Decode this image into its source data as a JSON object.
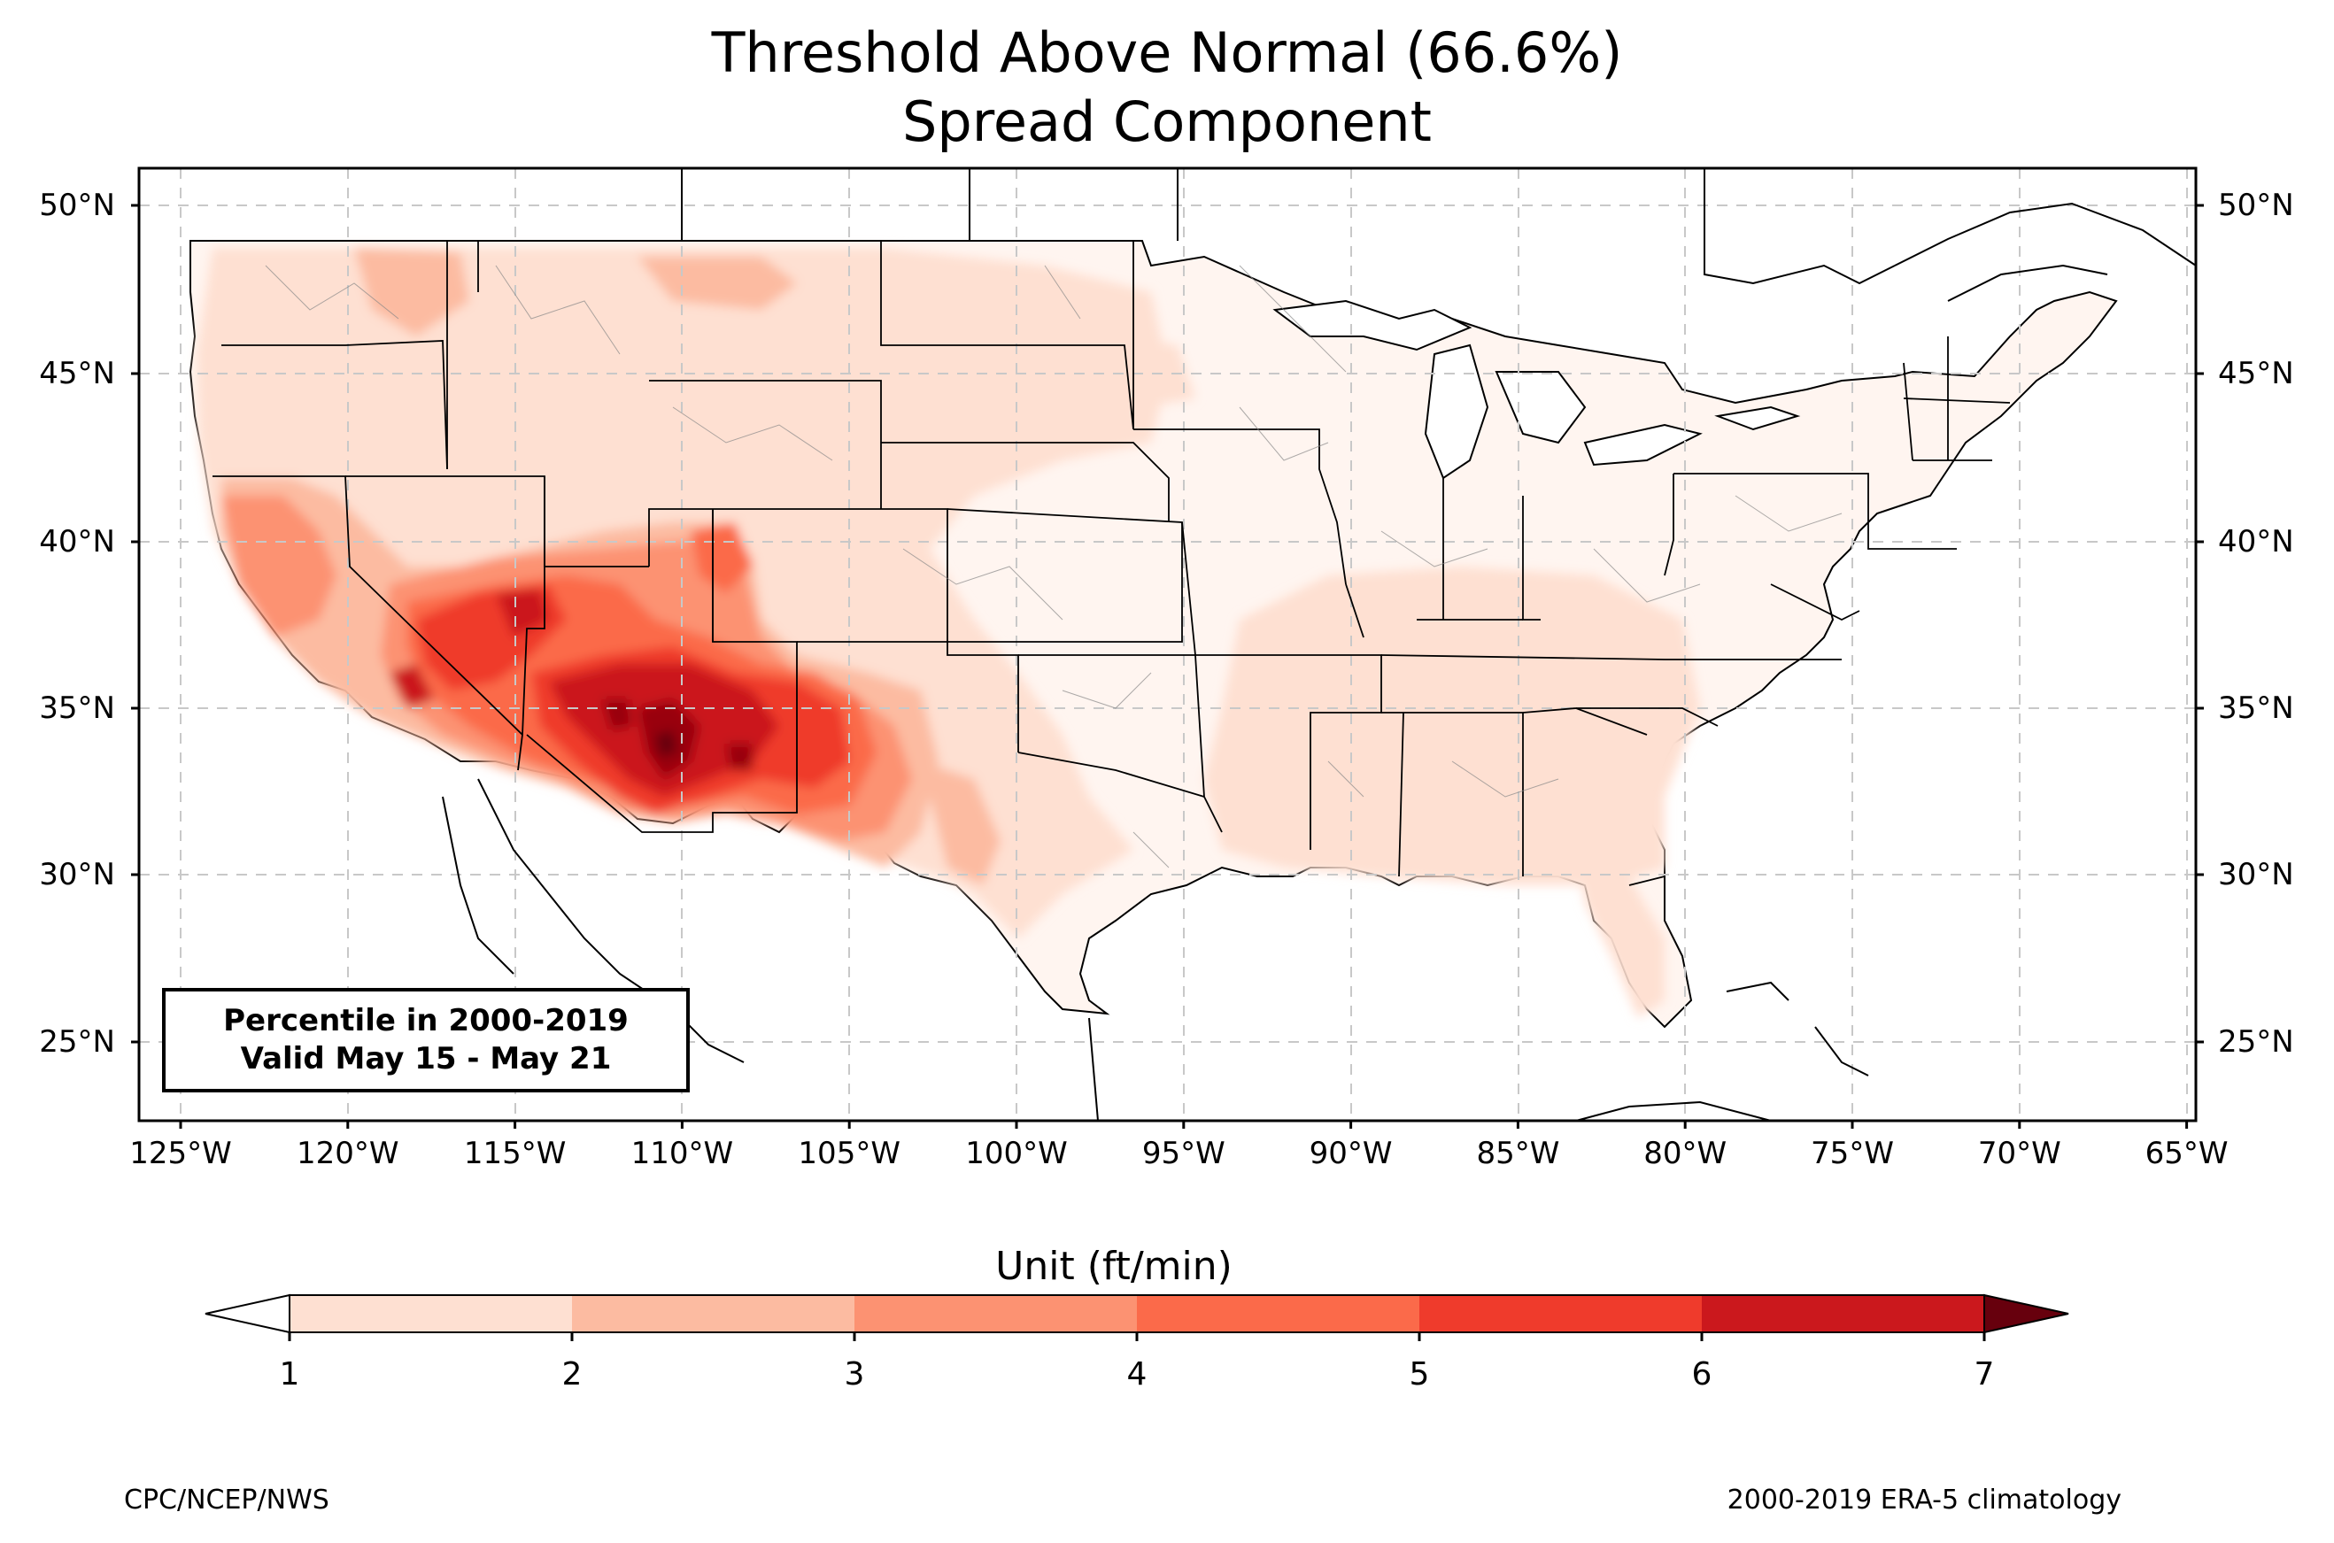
{
  "title": {
    "line1": "Threshold Above Normal (66.6%)",
    "line2": "Spread Component"
  },
  "map": {
    "region": "Contiguous United States",
    "lat_labels": [
      "50°N",
      "45°N",
      "40°N",
      "35°N",
      "30°N",
      "25°N"
    ],
    "lon_labels": [
      "125°W",
      "120°W",
      "115°W",
      "110°W",
      "105°W",
      "100°W",
      "95°W",
      "90°W",
      "85°W",
      "80°W",
      "75°W",
      "70°W",
      "65°W"
    ],
    "grid": true,
    "colors": {
      "c1": "#fee0d2",
      "c2": "#fcbba1",
      "c3": "#fc9272",
      "c4": "#fb6a4a",
      "c5": "#ef3b2c",
      "c6": "#cb181d",
      "c7": "#99000d",
      "c8": "#67000d",
      "base": "#fff5f0"
    }
  },
  "info_box": {
    "line1": "Percentile in 2000-2019",
    "line2": "Valid May 15 - May 21"
  },
  "colorbar": {
    "title": "Unit (ft/min)",
    "ticks": [
      "1",
      "2",
      "3",
      "4",
      "5",
      "6",
      "7"
    ],
    "colors": [
      "#fee0d2",
      "#fcbba1",
      "#fc9272",
      "#fb6a4a",
      "#ef3b2c",
      "#cb181d",
      "#a50f15"
    ],
    "under_color": "#ffffff",
    "over_color": "#67000d"
  },
  "footer": {
    "left": "CPC/NCEP/NWS",
    "right": "2000-2019 ERA-5 climatology"
  }
}
